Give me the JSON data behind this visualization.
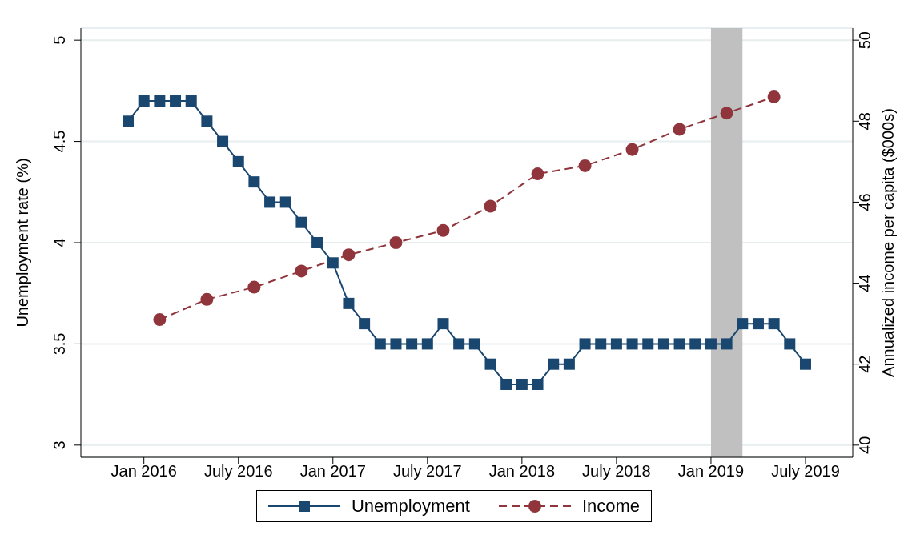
{
  "chart_data": {
    "type": "line",
    "ylabel": "Unemployment rate (%)",
    "y2label": "Annualized income per capita ($000s)",
    "xlim": [
      "2015-09",
      "2019-10"
    ],
    "xticks": [
      {
        "value": "2016-01",
        "label": "Jan 2016"
      },
      {
        "value": "2016-07",
        "label": "July 2016"
      },
      {
        "value": "2017-01",
        "label": "Jan 2017"
      },
      {
        "value": "2017-07",
        "label": "July 2017"
      },
      {
        "value": "2018-01",
        "label": "Jan 2018"
      },
      {
        "value": "2018-07",
        "label": "July 2018"
      },
      {
        "value": "2019-01",
        "label": "Jan 2019"
      },
      {
        "value": "2019-07",
        "label": "July 2019"
      }
    ],
    "ylim": [
      2.94,
      5.06
    ],
    "yticks": [
      3,
      3.5,
      4,
      4.5,
      5
    ],
    "y2lim": [
      39.7,
      50.3
    ],
    "y2ticks": [
      40,
      42,
      44,
      46,
      48,
      50
    ],
    "grid": "y",
    "legend": "bottom",
    "bands": [
      {
        "axis": "x",
        "from": "2019-01",
        "to": "2019-03",
        "color": "#c0c0c0"
      }
    ],
    "series": [
      {
        "name": "Unemployment",
        "color": "#1a476f",
        "marker": "square",
        "line_style": "solid",
        "x": [
          "2015-12",
          "2016-01",
          "2016-02",
          "2016-03",
          "2016-04",
          "2016-05",
          "2016-06",
          "2016-07",
          "2016-08",
          "2016-09",
          "2016-10",
          "2016-11",
          "2016-12",
          "2017-01",
          "2017-02",
          "2017-03",
          "2017-04",
          "2017-05",
          "2017-06",
          "2017-07",
          "2017-08",
          "2017-09",
          "2017-10",
          "2017-11",
          "2017-12",
          "2018-01",
          "2018-02",
          "2018-03",
          "2018-04",
          "2018-05",
          "2018-06",
          "2018-07",
          "2018-08",
          "2018-09",
          "2018-10",
          "2018-11",
          "2018-12",
          "2019-01",
          "2019-02",
          "2019-03",
          "2019-04",
          "2019-05",
          "2019-06",
          "2019-07"
        ],
        "values": [
          4.6,
          4.7,
          4.7,
          4.7,
          4.7,
          4.6,
          4.5,
          4.4,
          4.3,
          4.2,
          4.2,
          4.1,
          4.0,
          3.9,
          3.7,
          3.6,
          3.5,
          3.5,
          3.5,
          3.5,
          3.6,
          3.5,
          3.5,
          3.4,
          3.3,
          3.3,
          3.3,
          3.4,
          3.4,
          3.5,
          3.5,
          3.5,
          3.5,
          3.5,
          3.5,
          3.5,
          3.5,
          3.5,
          3.5,
          3.6,
          3.6,
          3.6,
          3.5,
          3.4
        ]
      },
      {
        "name": "Income",
        "axis": "y2",
        "color": "#90353b",
        "marker": "circle",
        "line_style": "dashed",
        "x": [
          "2016-02",
          "2016-05",
          "2016-08",
          "2016-11",
          "2017-02",
          "2017-05",
          "2017-08",
          "2017-11",
          "2018-02",
          "2018-05",
          "2018-08",
          "2018-11",
          "2019-02",
          "2019-05"
        ],
        "values": [
          43.1,
          43.6,
          43.9,
          44.3,
          44.7,
          45.0,
          45.3,
          45.9,
          46.7,
          46.9,
          47.3,
          47.8,
          48.2,
          48.6
        ]
      }
    ]
  }
}
